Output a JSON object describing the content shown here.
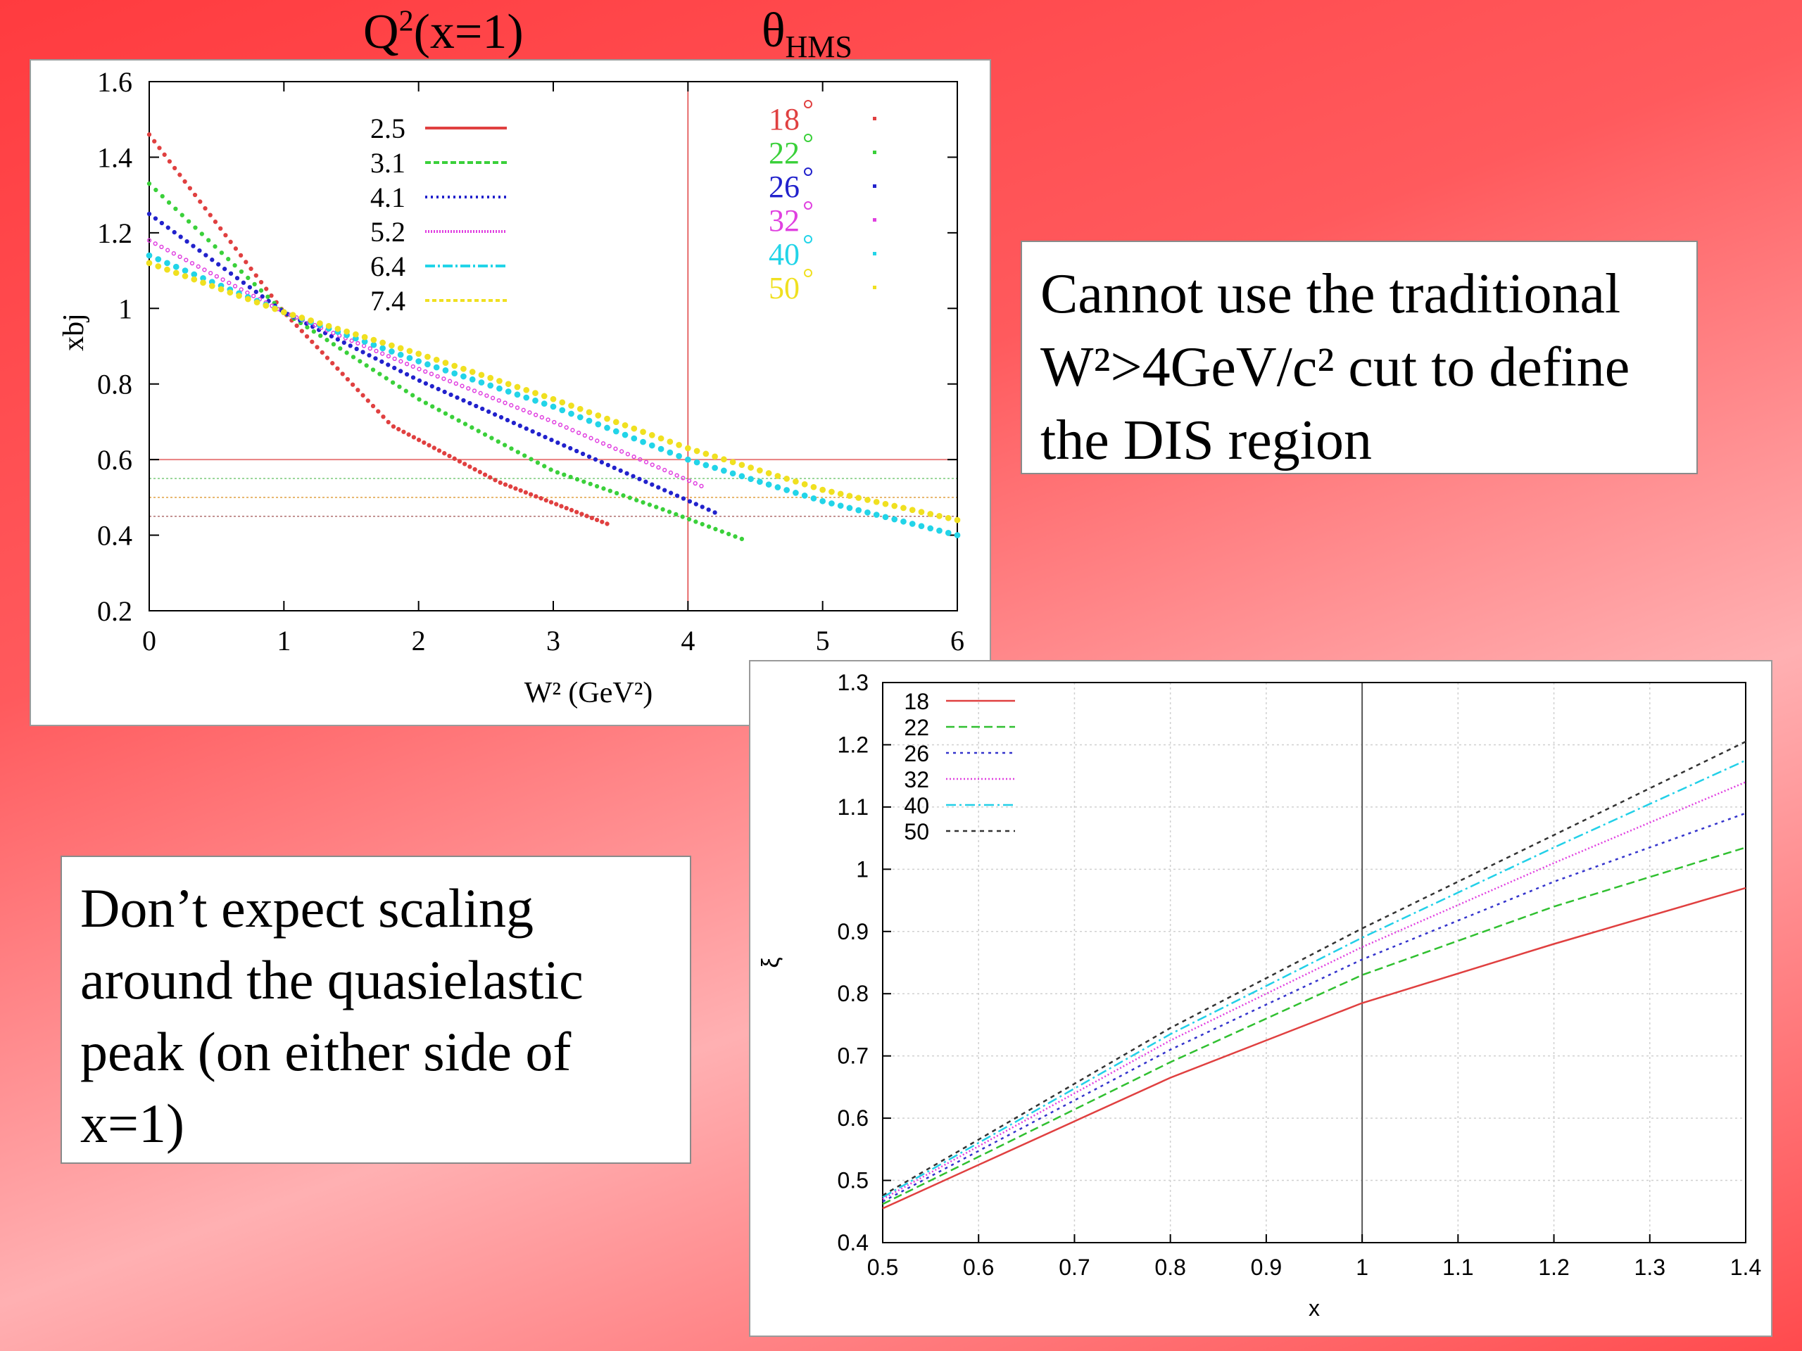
{
  "labels": {
    "q2_main": "Q",
    "q2_sup": "2",
    "q2_rest": "(x=1)",
    "theta_main": "θ",
    "theta_sub": "HMS"
  },
  "textboxes": {
    "right": [
      "Cannot use the traditional",
      "W²>4GeV/c² cut to define",
      "the DIS region"
    ],
    "left": [
      "Don’t expect scaling",
      "around the quasielastic",
      "peak (on either side of",
      "x=1)"
    ]
  },
  "chart_data": [
    {
      "type": "scatter",
      "xlabel": "W² (GeV²)",
      "ylabel": "xbj",
      "xlim": [
        0,
        6
      ],
      "ylim": [
        0.2,
        1.6
      ],
      "xticks": [
        "0",
        "1",
        "2",
        "3",
        "4",
        "5",
        "6"
      ],
      "yticks": [
        "0.2",
        "0.4",
        "0.6",
        "0.8",
        "1",
        "1.2",
        "1.4",
        "1.6"
      ],
      "legend_q2": [
        "2.5",
        "3.1",
        "4.1",
        "5.2",
        "6.4",
        "7.4"
      ],
      "legend_theta": [
        "18",
        "22",
        "26",
        "32",
        "40",
        "50"
      ],
      "series": [
        {
          "name": "2.5",
          "color": "#e04040",
          "points": [
            [
              0.0,
              1.46
            ],
            [
              1.0,
              0.99
            ],
            [
              1.8,
              0.69
            ],
            [
              2.6,
              0.54
            ],
            [
              3.4,
              0.43
            ]
          ]
        },
        {
          "name": "3.1",
          "color": "#3ad03a",
          "points": [
            [
              0.0,
              1.33
            ],
            [
              1.0,
              0.99
            ],
            [
              2.0,
              0.76
            ],
            [
              3.0,
              0.57
            ],
            [
              3.8,
              0.47
            ],
            [
              4.4,
              0.39
            ]
          ]
        },
        {
          "name": "4.1",
          "color": "#2222cc",
          "points": [
            [
              0.0,
              1.25
            ],
            [
              1.0,
              0.99
            ],
            [
              2.0,
              0.81
            ],
            [
              3.0,
              0.65
            ],
            [
              4.2,
              0.46
            ]
          ]
        },
        {
          "name": "5.2",
          "color": "#e040e0",
          "points": [
            [
              0.0,
              1.18
            ],
            [
              1.0,
              0.99
            ],
            [
              2.0,
              0.84
            ],
            [
              3.0,
              0.7
            ],
            [
              4.1,
              0.53
            ]
          ]
        },
        {
          "name": "6.4",
          "color": "#22d4e8",
          "points": [
            [
              0.0,
              1.14
            ],
            [
              1.0,
              0.99
            ],
            [
              2.0,
              0.86
            ],
            [
              3.0,
              0.74
            ],
            [
              4.0,
              0.6
            ],
            [
              5.0,
              0.49
            ],
            [
              6.0,
              0.4
            ]
          ]
        },
        {
          "name": "7.4",
          "color": "#f0e020",
          "points": [
            [
              0.0,
              1.12
            ],
            [
              1.0,
              0.99
            ],
            [
              2.0,
              0.88
            ],
            [
              3.0,
              0.76
            ],
            [
              4.0,
              0.63
            ],
            [
              5.0,
              0.52
            ],
            [
              6.0,
              0.44
            ]
          ]
        }
      ],
      "vlines": [
        {
          "x": 4,
          "color": "#e04040"
        }
      ],
      "hlines": [
        {
          "y": 0.6,
          "color": "#e88080"
        },
        {
          "y": 0.55,
          "color": "#7acc7a"
        },
        {
          "y": 0.5,
          "color": "#e0a040"
        },
        {
          "y": 0.45,
          "color": "#b07070"
        }
      ],
      "grid": false
    },
    {
      "type": "line",
      "xlabel": "x",
      "ylabel": "ξ",
      "xlim": [
        0.5,
        1.4
      ],
      "ylim": [
        0.4,
        1.3
      ],
      "xticks": [
        "0.5",
        "0.6",
        "0.7",
        "0.8",
        "0.9",
        "1",
        "1.1",
        "1.2",
        "1.3",
        "1.4"
      ],
      "yticks": [
        "0.4",
        "0.5",
        "0.6",
        "0.7",
        "0.8",
        "0.9",
        "1",
        "1.1",
        "1.2",
        "1.3"
      ],
      "legend": "top-left",
      "series": [
        {
          "name": "18",
          "color": "#e04040",
          "dash": "",
          "x": [
            0.5,
            0.8,
            1.0,
            1.2,
            1.4
          ],
          "y": [
            0.455,
            0.665,
            0.785,
            0.88,
            0.97
          ]
        },
        {
          "name": "22",
          "color": "#30c030",
          "dash": "12 6",
          "x": [
            0.5,
            0.8,
            1.0,
            1.2,
            1.4
          ],
          "y": [
            0.462,
            0.69,
            0.83,
            0.94,
            1.035
          ]
        },
        {
          "name": "26",
          "color": "#3333cc",
          "dash": "4 6",
          "x": [
            0.5,
            0.8,
            1.0,
            1.2,
            1.4
          ],
          "y": [
            0.466,
            0.71,
            0.855,
            0.98,
            1.09
          ]
        },
        {
          "name": "32",
          "color": "#e040e0",
          "dash": "2 3",
          "x": [
            0.5,
            0.8,
            1.0,
            1.2,
            1.4
          ],
          "y": [
            0.47,
            0.725,
            0.875,
            1.01,
            1.14
          ]
        },
        {
          "name": "40",
          "color": "#22d0e8",
          "dash": "14 5 3 5",
          "x": [
            0.5,
            0.8,
            1.0,
            1.2,
            1.4
          ],
          "y": [
            0.473,
            0.735,
            0.89,
            1.035,
            1.175
          ]
        },
        {
          "name": "50",
          "color": "#333333",
          "dash": "6 6",
          "x": [
            0.5,
            0.8,
            1.0,
            1.2,
            1.4
          ],
          "y": [
            0.476,
            0.745,
            0.905,
            1.055,
            1.205
          ]
        }
      ],
      "vlines": [
        {
          "x": 1.0,
          "color": "#555555"
        }
      ],
      "grid": true
    }
  ]
}
